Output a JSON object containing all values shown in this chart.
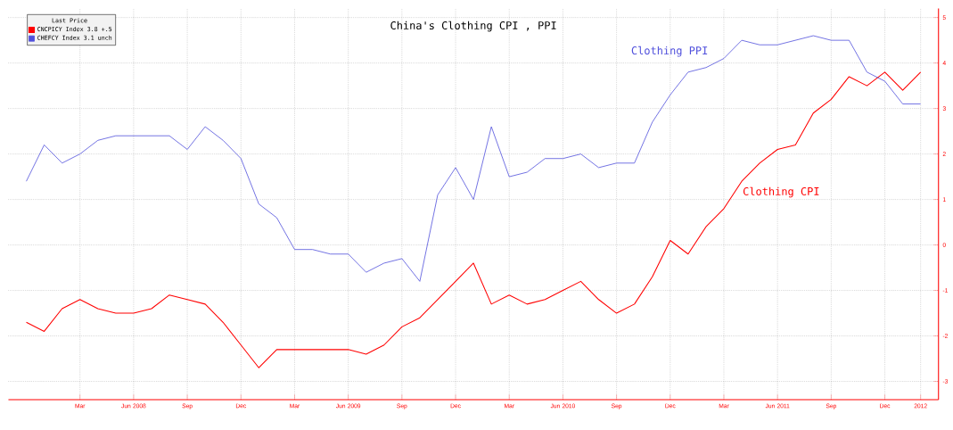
{
  "chart_data": {
    "type": "line",
    "title": "China's Clothing CPI , PPI",
    "legend_title": "Last Price",
    "x": [
      "2007-12",
      "2008-01",
      "2008-02",
      "2008-03",
      "2008-04",
      "2008-05",
      "2008-06",
      "2008-07",
      "2008-08",
      "2008-09",
      "2008-10",
      "2008-11",
      "2008-12",
      "2009-01",
      "2009-02",
      "2009-03",
      "2009-04",
      "2009-05",
      "2009-06",
      "2009-07",
      "2009-08",
      "2009-09",
      "2009-10",
      "2009-11",
      "2009-12",
      "2010-01",
      "2010-02",
      "2010-03",
      "2010-04",
      "2010-05",
      "2010-06",
      "2010-07",
      "2010-08",
      "2010-09",
      "2010-10",
      "2010-11",
      "2010-12",
      "2011-01",
      "2011-02",
      "2011-03",
      "2011-04",
      "2011-05",
      "2011-06",
      "2011-07",
      "2011-08",
      "2011-09",
      "2011-10",
      "2011-11",
      "2011-12",
      "2012-01",
      "2012-02"
    ],
    "series": [
      {
        "name": "CNCPICY Index 3.8 +.5",
        "color": "#ff0000",
        "values": [
          -1.7,
          -1.9,
          -1.4,
          -1.2,
          -1.4,
          -1.5,
          -1.5,
          -1.4,
          -1.1,
          -1.2,
          -1.3,
          -1.7,
          -2.2,
          -2.7,
          -2.3,
          -2.3,
          -2.3,
          -2.3,
          -2.3,
          -2.4,
          -2.2,
          -1.8,
          -1.6,
          -1.2,
          -0.8,
          -0.4,
          -1.3,
          -1.1,
          -1.3,
          -1.2,
          -1.0,
          -0.8,
          -1.2,
          -1.5,
          -1.3,
          -0.7,
          0.1,
          -0.2,
          0.4,
          0.8,
          1.4,
          1.8,
          2.1,
          2.2,
          2.9,
          3.2,
          3.7,
          3.5,
          3.8,
          3.4,
          3.8
        ]
      },
      {
        "name": "CHEFCY Index 3.1 unch",
        "color": "#5050dc",
        "values": [
          1.4,
          2.2,
          1.8,
          2.0,
          2.3,
          2.4,
          2.4,
          2.4,
          2.4,
          2.1,
          2.6,
          2.3,
          1.9,
          0.9,
          0.6,
          -0.1,
          -0.1,
          -0.2,
          -0.2,
          -0.6,
          -0.4,
          -0.3,
          -0.8,
          1.1,
          1.7,
          1.0,
          2.6,
          1.5,
          1.6,
          1.9,
          1.9,
          2.0,
          1.7,
          1.8,
          1.8,
          2.7,
          3.3,
          3.8,
          3.9,
          4.1,
          4.5,
          4.4,
          4.4,
          4.5,
          4.6,
          4.5,
          4.5,
          3.8,
          3.6,
          3.1,
          3.1
        ]
      }
    ],
    "annotations": [
      "Clothing CPI",
      "Clothing PPI"
    ],
    "xlim": [
      "2007-11",
      "2012-03"
    ],
    "xticks": [
      {
        "value": "2008-03",
        "label": "Mar"
      },
      {
        "value": "2008-06",
        "label": "Jun 2008"
      },
      {
        "value": "2008-09",
        "label": "Sep"
      },
      {
        "value": "2008-12",
        "label": "Dec"
      },
      {
        "value": "2009-03",
        "label": "Mar"
      },
      {
        "value": "2009-06",
        "label": "Jun 2009"
      },
      {
        "value": "2009-09",
        "label": "Sep"
      },
      {
        "value": "2009-12",
        "label": "Dec"
      },
      {
        "value": "2010-03",
        "label": "Mar"
      },
      {
        "value": "2010-06",
        "label": "Jun 2010"
      },
      {
        "value": "2010-09",
        "label": "Sep"
      },
      {
        "value": "2010-12",
        "label": "Dec"
      },
      {
        "value": "2011-03",
        "label": "Mar"
      },
      {
        "value": "2011-06",
        "label": "Jun 2011"
      },
      {
        "value": "2011-09",
        "label": "Sep"
      },
      {
        "value": "2011-12",
        "label": "Dec"
      },
      {
        "value": "2012-02",
        "label": "2012"
      }
    ],
    "ylim": [
      -3.4,
      5.2
    ],
    "yticks": [
      -3,
      -2,
      -1,
      0,
      1,
      2,
      3,
      4,
      5
    ],
    "grid": true,
    "legend": "top left",
    "line_style": "solid",
    "marker": "none"
  }
}
